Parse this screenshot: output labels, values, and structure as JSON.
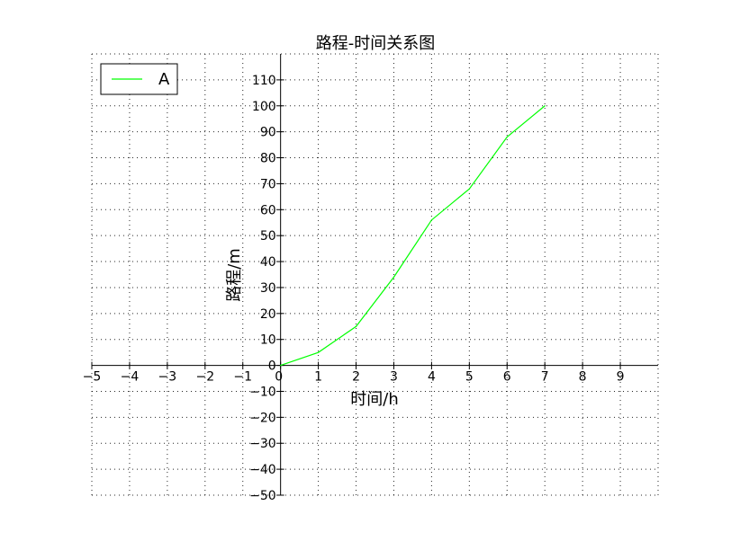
{
  "chart_data": {
    "type": "line",
    "title": "路程-时间关系图",
    "xlabel": "时间/h",
    "ylabel": "路程/m",
    "xlim": [
      -5,
      10
    ],
    "ylim": [
      -50,
      120
    ],
    "xticks": [
      -5,
      -4,
      -3,
      -2,
      -1,
      0,
      1,
      2,
      3,
      4,
      5,
      6,
      7,
      8,
      9
    ],
    "yticks": [
      -50,
      -40,
      -30,
      -20,
      -10,
      0,
      10,
      20,
      30,
      40,
      50,
      60,
      70,
      80,
      90,
      100,
      110
    ],
    "grid": true,
    "legend_position": "top-left",
    "series": [
      {
        "name": "A",
        "color": "#00ff00",
        "x": [
          0,
          1,
          2,
          3,
          4,
          5,
          6,
          7
        ],
        "y": [
          0,
          5,
          15,
          34,
          56,
          68,
          88,
          100
        ]
      }
    ]
  }
}
